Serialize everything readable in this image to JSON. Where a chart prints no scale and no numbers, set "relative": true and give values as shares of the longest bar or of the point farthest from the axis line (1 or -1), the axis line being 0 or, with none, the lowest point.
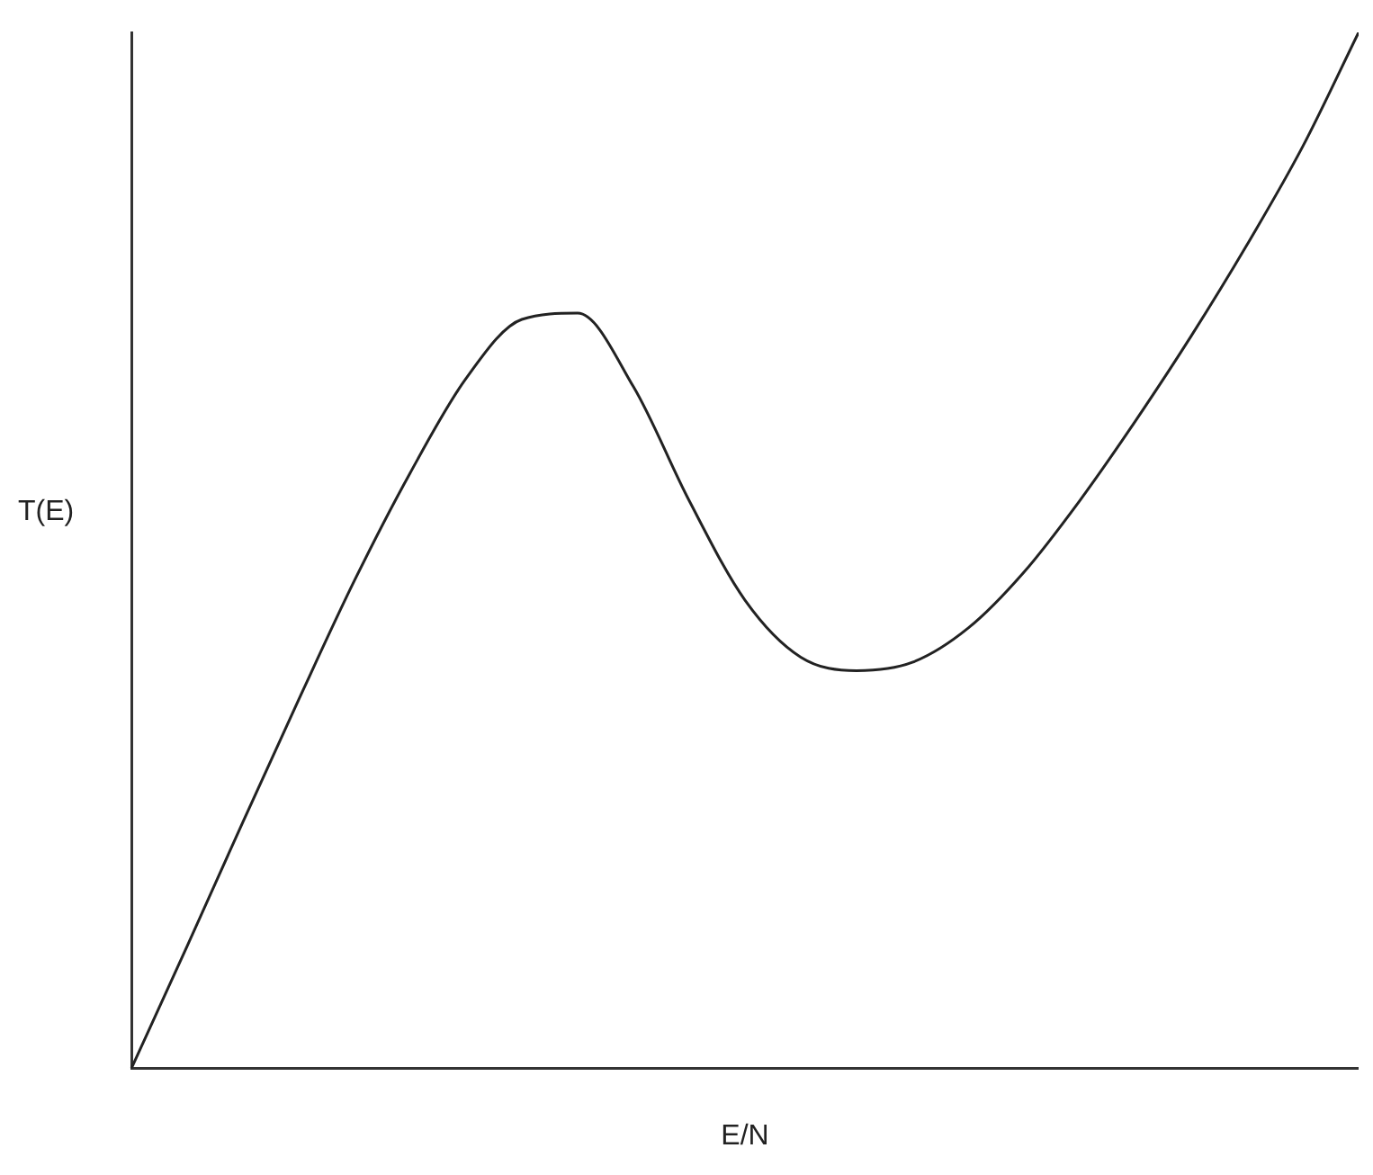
{
  "chart_data": {
    "type": "line",
    "relative": true,
    "xlabel": "E/N",
    "ylabel": "T(E)",
    "grid": false,
    "legend": false,
    "marker": "none",
    "line_style": "solid",
    "categories": [
      null,
      null,
      null,
      null,
      null,
      null,
      null,
      null,
      null,
      null,
      null,
      null,
      null,
      null,
      null,
      null,
      null,
      null,
      null,
      null,
      null,
      null,
      null
    ],
    "series": [
      {
        "color": "#222222",
        "values": [
          0,
          0.118,
          0.238,
          0.356,
          0.471,
          0.575,
          0.666,
          0.723,
          0.729,
          0.658,
          0.548,
          0.452,
          0.397,
          0.384,
          0.392,
          0.425,
          0.479,
          0.548,
          0.625,
          0.707,
          0.795,
          0.89,
          1
        ]
      }
    ]
  }
}
